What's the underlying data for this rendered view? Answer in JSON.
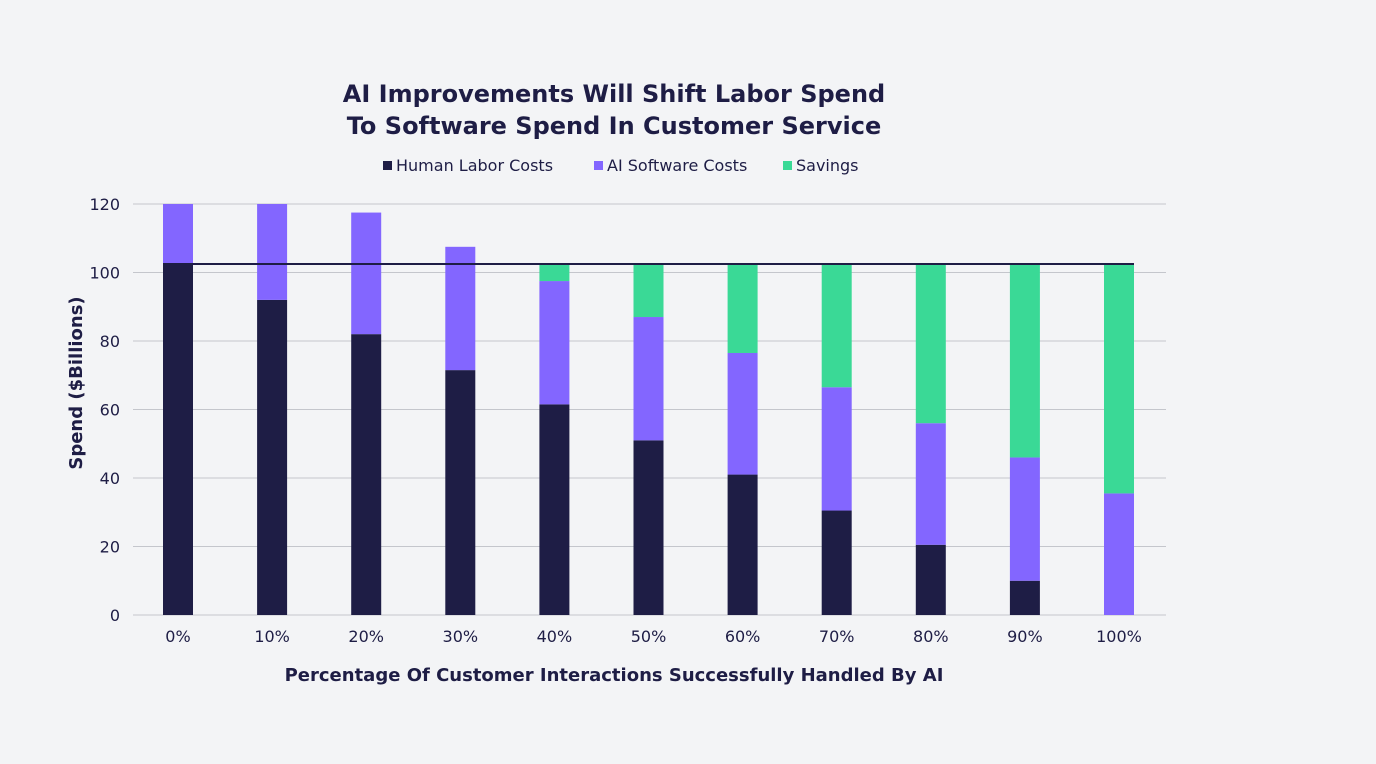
{
  "chart_data": {
    "type": "bar",
    "stacked": true,
    "title": [
      "AI Improvements Will Shift Labor Spend",
      "To Software Spend In Customer Service"
    ],
    "xlabel": "Percentage Of Customer Interactions Successfully Handled By AI",
    "ylabel": "Spend ($Billions)",
    "ylim": [
      0,
      120
    ],
    "yticks": [
      0,
      20,
      40,
      60,
      80,
      100,
      120
    ],
    "categories": [
      "0%",
      "10%",
      "20%",
      "30%",
      "40%",
      "50%",
      "60%",
      "70%",
      "80%",
      "90%",
      "100%"
    ],
    "series": [
      {
        "name": "Human Labor Costs",
        "color": "#1e1d45",
        "values": [
          102.5,
          92,
          82,
          71.5,
          61.5,
          51,
          41,
          30.5,
          20.5,
          10,
          0
        ]
      },
      {
        "name": "AI Software Costs",
        "color": "#8366ff",
        "values": [
          17.5,
          28,
          35.5,
          36,
          36,
          36,
          35.5,
          36,
          35.5,
          36,
          35.5
        ]
      },
      {
        "name": "Savings",
        "color": "#3ad996",
        "values": [
          0,
          0,
          0,
          0,
          5,
          15.5,
          26,
          36,
          46.5,
          56.5,
          67
        ]
      }
    ],
    "reference_line": {
      "value": 102.5,
      "color": "#1e1d45"
    },
    "grid": true,
    "legend_position": "top"
  }
}
